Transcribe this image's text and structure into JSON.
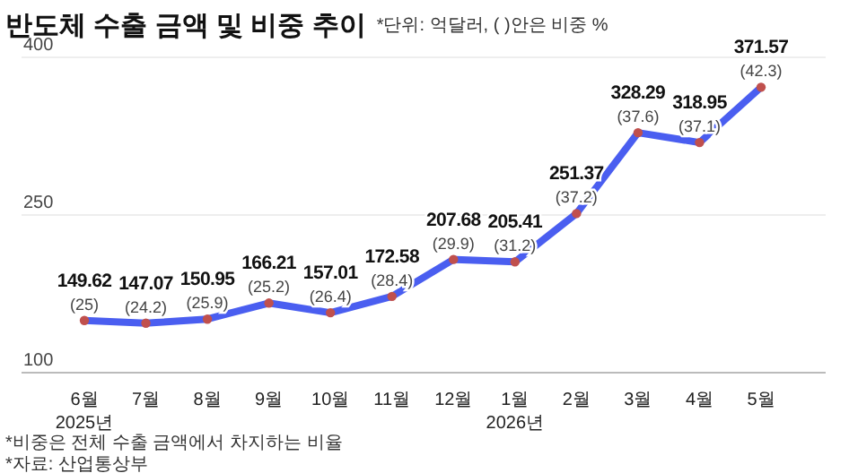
{
  "chart_data": {
    "type": "line",
    "title": "반도체 수출 금액 및 비중 추이",
    "subtitle": "*단위: 억달러, ( )안은 비중 %",
    "categories": [
      "6월\n2025년",
      "7월",
      "8월",
      "9월",
      "10월",
      "11월",
      "12월",
      "1월\n2026년",
      "2월",
      "3월",
      "4월",
      "5월"
    ],
    "series": [
      {
        "color": "#4a5ef0",
        "values": [
          149.62,
          147.07,
          150.95,
          166.21,
          157.01,
          172.58,
          207.68,
          205.41,
          251.37,
          328.29,
          318.95,
          371.57
        ]
      }
    ],
    "ylim": [
      100,
      400
    ],
    "yticks": [
      100,
      250,
      400
    ],
    "grid": "y",
    "marker": "circle",
    "data_labels": true,
    "annotations": [
      {
        "text": "(25)",
        "x": "6월\n2025년",
        "y": 149.62
      },
      {
        "text": "(24.2)",
        "x": "7월",
        "y": 147.07
      },
      {
        "text": "(25.9)",
        "x": "8월",
        "y": 150.95
      },
      {
        "text": "(25.2)",
        "x": "9월",
        "y": 166.21
      },
      {
        "text": "(26.4)",
        "x": "10월",
        "y": 157.01
      },
      {
        "text": "(28.4)",
        "x": "11월",
        "y": 172.58
      },
      {
        "text": "(29.9)",
        "x": "12월",
        "y": 207.68
      },
      {
        "text": "(31.2)",
        "x": "1월\n2026년",
        "y": 205.41
      },
      {
        "text": "(37.2)",
        "x": "2월",
        "y": 251.37
      },
      {
        "text": "(37.6)",
        "x": "3월",
        "y": 328.29
      },
      {
        "text": "(37.1)",
        "x": "4월",
        "y": 318.95
      },
      {
        "text": "(42.3)",
        "x": "5월",
        "y": 371.57
      },
      "*비중은 전체 수출 금액에서 차지하는 비율",
      "*자료: 산업통상부"
    ]
  }
}
